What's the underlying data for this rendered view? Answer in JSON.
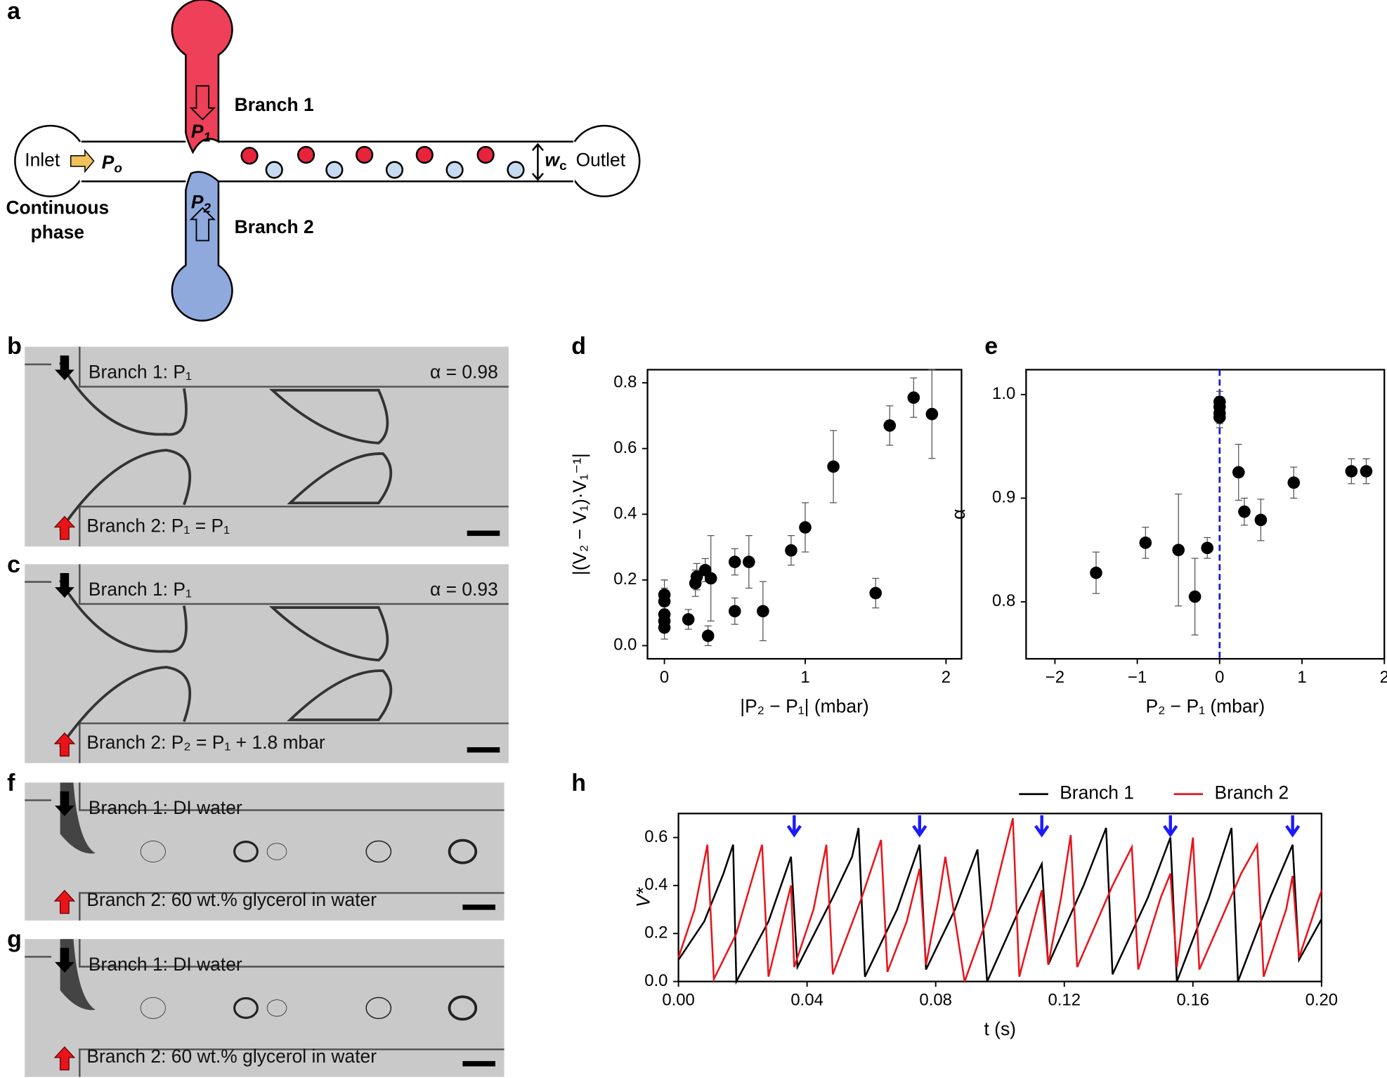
{
  "panel_labels": [
    "a",
    "b",
    "c",
    "d",
    "e",
    "f",
    "g",
    "h"
  ],
  "diagram": {
    "inlet": "Inlet",
    "inlet_pressure": "P",
    "inlet_pressure_sub": "o",
    "branch1": "Branch 1",
    "branch2": "Branch 2",
    "p1": "P",
    "p1_sub": "1",
    "p2": "P",
    "p2_sub": "2",
    "width": "w",
    "width_sub": "c",
    "outlet": "Outlet",
    "continuous_phase": [
      "Continuous",
      "phase"
    ]
  },
  "micrographs": [
    {
      "top": "Branch 1: P₁",
      "alpha": "α = 0.98",
      "bottom": "Branch 2: P₁ = P₁"
    },
    {
      "top": "Branch 1: P₁",
      "alpha": "α = 0.93",
      "bottom": "Branch 2: P₂ = P₁ + 1.8 mbar"
    },
    {
      "top": "Branch 1: DI water",
      "bottom": "Branch 2: 60 wt.% glycerol in water"
    },
    {
      "top": "Branch 1: DI water",
      "bottom": "Branch 2: 60 wt.% glycerol in water"
    }
  ],
  "chart_data": [
    {
      "type": "scatter",
      "x_label": "|P₂ − P₁| (mbar)",
      "y_label": "|(V₂ − V₁)·V₁⁻¹|",
      "color": "#000000",
      "x": [
        0,
        0,
        0,
        0,
        0,
        0.17,
        0.22,
        0.23,
        0.29,
        0.31,
        0.33,
        0.5,
        0.5,
        0.6,
        0.7,
        0.9,
        1.0,
        1.2,
        1.5,
        1.6,
        1.77,
        1.9
      ],
      "values": [
        0.155,
        0.135,
        0.095,
        0.075,
        0.055,
        0.08,
        0.19,
        0.21,
        0.23,
        0.03,
        0.205,
        0.255,
        0.105,
        0.255,
        0.105,
        0.29,
        0.36,
        0.545,
        0.16,
        0.67,
        0.755,
        0.705
      ],
      "errors": [
        0.045,
        0.04,
        0.04,
        0.035,
        0.035,
        0.03,
        0.04,
        0.04,
        0.035,
        0.03,
        0.13,
        0.04,
        0.04,
        0.08,
        0.09,
        0.045,
        0.075,
        0.11,
        0.045,
        0.06,
        0.06,
        0.135
      ],
      "xlim": [
        -0.12,
        2.11
      ],
      "ylim": [
        -0.04,
        0.84
      ],
      "xticks": [
        0,
        1,
        2
      ],
      "yticks": [
        {
          "value": 0,
          "label": "0.0"
        },
        {
          "value": 0.2,
          "label": "0.2"
        },
        {
          "value": 0.4,
          "label": "0.4"
        },
        {
          "value": 0.6,
          "label": "0.6"
        },
        {
          "value": 0.8,
          "label": "0.8"
        }
      ]
    },
    {
      "type": "scatter",
      "x_label": "P₂ − P₁ (mbar)",
      "y_label": "α",
      "color": "#000000",
      "x": [
        -1.5,
        -0.9,
        -0.5,
        -0.3,
        -0.15,
        0,
        0,
        0,
        0,
        0.23,
        0.3,
        0.5,
        0.9,
        1.6,
        1.78
      ],
      "values": [
        0.828,
        0.857,
        0.85,
        0.805,
        0.852,
        0.993,
        0.988,
        0.982,
        0.978,
        0.925,
        0.887,
        0.879,
        0.915,
        0.926,
        0.926
      ],
      "errors": [
        0.02,
        0.015,
        0.054,
        0.037,
        0.01,
        0.01,
        0.01,
        0.01,
        0.01,
        0.027,
        0.013,
        0.02,
        0.015,
        0.012,
        0.012
      ],
      "xlim": [
        -2.35,
        2.0
      ],
      "ylim": [
        0.745,
        1.024
      ],
      "xticks": [
        {
          "value": -2,
          "label": "−2"
        },
        {
          "value": -1,
          "label": "−1"
        },
        0,
        1,
        2
      ],
      "yticks": [
        0.8,
        0.9,
        {
          "value": 1,
          "label": "1.0"
        }
      ],
      "reference_line_x": 0,
      "reference_color": "#1a1ad0"
    },
    {
      "type": "line",
      "x_label": "t (s)",
      "y_label": "V*",
      "series": [
        {
          "name": "Branch 1",
          "color": "#000000",
          "x": [
            0,
            0.008,
            0.014,
            0.017,
            0.018,
            0.028,
            0.035,
            0.037,
            0.048,
            0.054,
            0.056,
            0.058,
            0.068,
            0.075,
            0.077,
            0.086,
            0.093,
            0.096,
            0.106,
            0.113,
            0.115,
            0.126,
            0.133,
            0.135,
            0.146,
            0.153,
            0.155,
            0.165,
            0.172,
            0.174,
            0.184,
            0.191,
            0.193,
            0.2
          ],
          "values": [
            0.09,
            0.25,
            0.45,
            0.57,
            0.0,
            0.25,
            0.52,
            0.06,
            0.35,
            0.52,
            0.64,
            0.02,
            0.3,
            0.57,
            0.05,
            0.3,
            0.55,
            0.0,
            0.3,
            0.49,
            0.07,
            0.4,
            0.64,
            0.03,
            0.35,
            0.6,
            0.0,
            0.35,
            0.64,
            0.0,
            0.35,
            0.57,
            0.09,
            0.26
          ]
        },
        {
          "name": "Branch 2",
          "color": "#e8141a",
          "x": [
            0,
            0.005,
            0.009,
            0.011,
            0.018,
            0.026,
            0.028,
            0.035,
            0.036,
            0.042,
            0.046,
            0.048,
            0.057,
            0.063,
            0.065,
            0.071,
            0.075,
            0.077,
            0.081,
            0.083,
            0.089,
            0.097,
            0.104,
            0.106,
            0.113,
            0.115,
            0.119,
            0.122,
            0.124,
            0.135,
            0.141,
            0.143,
            0.15,
            0.153,
            0.155,
            0.16,
            0.162,
            0.175,
            0.18,
            0.182,
            0.189,
            0.191,
            0.193,
            0.2
          ],
          "values": [
            0.1,
            0.3,
            0.57,
            0.01,
            0.2,
            0.57,
            0.02,
            0.4,
            0.06,
            0.3,
            0.57,
            0.03,
            0.35,
            0.59,
            0.04,
            0.25,
            0.47,
            0.07,
            0.35,
            0.52,
            0.0,
            0.3,
            0.68,
            0.02,
            0.38,
            0.07,
            0.35,
            0.61,
            0.06,
            0.4,
            0.56,
            0.05,
            0.35,
            0.45,
            0.06,
            0.6,
            0.05,
            0.45,
            0.57,
            0.02,
            0.3,
            0.44,
            0.1,
            0.38
          ]
        }
      ],
      "xlim": [
        0,
        0.2
      ],
      "ylim": [
        0,
        0.7
      ],
      "xticks": [
        {
          "value": 0,
          "label": "0.00"
        },
        {
          "value": 0.04,
          "label": "0.04"
        },
        {
          "value": 0.08,
          "label": "0.08"
        },
        {
          "value": 0.12,
          "label": "0.12"
        },
        {
          "value": 0.16,
          "label": "0.16"
        },
        {
          "value": 0.2,
          "label": "0.20"
        }
      ],
      "yticks": [
        {
          "value": 0,
          "label": "0.0"
        },
        {
          "value": 0.2,
          "label": "0.2"
        },
        {
          "value": 0.4,
          "label": "0.4"
        },
        {
          "value": 0.6,
          "label": "0.6"
        }
      ],
      "markers_x": [
        0.036,
        0.075,
        0.113,
        0.153,
        0.191
      ],
      "marker_color": "#1a1aff"
    }
  ]
}
